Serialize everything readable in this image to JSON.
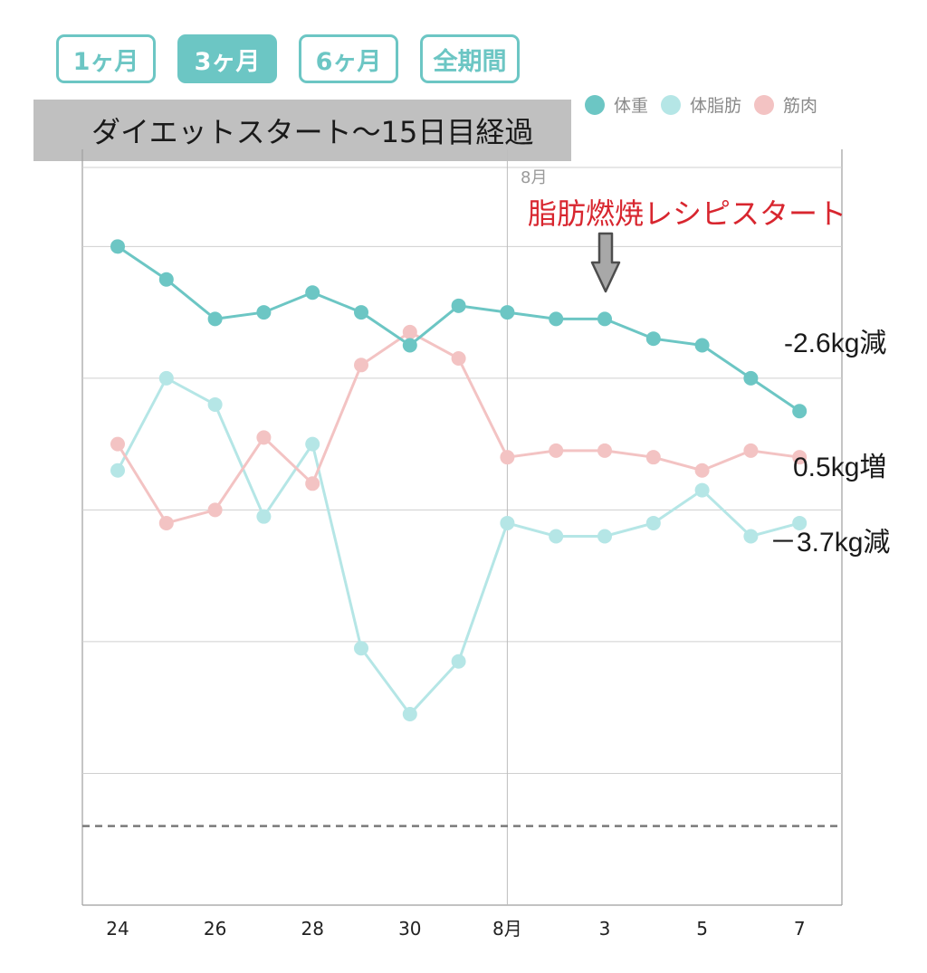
{
  "tabs": [
    {
      "label": "1ヶ月",
      "active": false
    },
    {
      "label": "3ヶ月",
      "active": true
    },
    {
      "label": "6ヶ月",
      "active": false
    },
    {
      "label": "全期間",
      "active": false
    }
  ],
  "banner": "ダイエットスタート〜15日目経過",
  "legend": [
    {
      "label": "体重",
      "color": "#6cc6c4"
    },
    {
      "label": "体脂肪",
      "color": "#b5e6e6"
    },
    {
      "label": "筋肉",
      "color": "#f3c3c3"
    }
  ],
  "month_marker": "8月",
  "start_annotation": "脂肪燃焼レシピスタート",
  "result_labels": {
    "weight": "-2.6kg減",
    "muscle": "0.5kg増",
    "fat": "－3.7kg減"
  },
  "chart_data": {
    "type": "line",
    "x": [
      "24",
      "25",
      "26",
      "27",
      "28",
      "29",
      "30",
      "31",
      "8月",
      "2",
      "3",
      "4",
      "5",
      "6",
      "7"
    ],
    "tick_labels": [
      "24",
      "26",
      "28",
      "30",
      "8月",
      "3",
      "5",
      "7"
    ],
    "tick_indices": [
      0,
      2,
      4,
      6,
      8,
      10,
      12,
      14
    ],
    "ylim": [
      0,
      5.6
    ],
    "gridlines": [
      1,
      2,
      3,
      4,
      5
    ],
    "reference_line": 0.6,
    "grid": true,
    "series": [
      {
        "name": "体重",
        "color": "#6cc6c4",
        "values": [
          5.0,
          4.75,
          4.45,
          4.5,
          4.65,
          4.5,
          4.25,
          4.55,
          4.5,
          4.45,
          4.45,
          4.3,
          4.25,
          4.0,
          3.75
        ]
      },
      {
        "name": "体脂肪",
        "color": "#b5e6e6",
        "values": [
          3.3,
          4.0,
          3.8,
          2.95,
          3.5,
          1.95,
          1.45,
          1.85,
          2.9,
          2.8,
          2.8,
          2.9,
          3.15,
          2.8,
          2.9
        ]
      },
      {
        "name": "筋肉",
        "color": "#f3c3c3",
        "values": [
          3.5,
          2.9,
          3.0,
          3.55,
          3.2,
          4.1,
          4.35,
          4.15,
          3.4,
          3.45,
          3.45,
          3.4,
          3.3,
          3.45,
          3.4
        ]
      }
    ]
  }
}
